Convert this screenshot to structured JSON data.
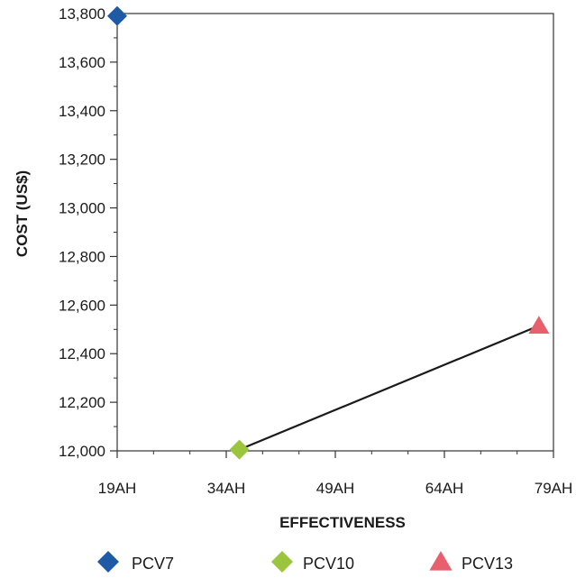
{
  "chart_data": {
    "type": "scatter",
    "title": "",
    "xlabel": "EFFECTIVENESS",
    "ylabel": "COST (US$)",
    "x_ticks": [
      {
        "value": 19,
        "label": "19AH"
      },
      {
        "value": 34,
        "label": "34AH"
      },
      {
        "value": 49,
        "label": "49AH"
      },
      {
        "value": 64,
        "label": "64AH"
      },
      {
        "value": 79,
        "label": "79AH"
      }
    ],
    "y_ticks": [
      {
        "value": 12000,
        "label": "12,000"
      },
      {
        "value": 12200,
        "label": "12,200"
      },
      {
        "value": 12400,
        "label": "12,400"
      },
      {
        "value": 12600,
        "label": "12,600"
      },
      {
        "value": 12800,
        "label": "12,800"
      },
      {
        "value": 13000,
        "label": "13,000"
      },
      {
        "value": 13200,
        "label": "13,200"
      },
      {
        "value": 13400,
        "label": "13,400"
      },
      {
        "value": 13600,
        "label": "13,600"
      },
      {
        "value": 13800,
        "label": "13,800"
      }
    ],
    "xlim": [
      19,
      79
    ],
    "ylim": [
      12000,
      13800
    ],
    "grid": false,
    "legend_position": "bottom",
    "series": [
      {
        "name": "PCV7",
        "x": 19,
        "y": 13790,
        "marker": "diamond",
        "color": "#1f5aa6"
      },
      {
        "name": "PCV10",
        "x": 35.8,
        "y": 12005,
        "marker": "diamond",
        "color": "#9bc53d"
      },
      {
        "name": "PCV13",
        "x": 77,
        "y": 12515,
        "marker": "triangle",
        "color": "#e8606e"
      }
    ],
    "frontier": {
      "from": "PCV10",
      "to": "PCV13",
      "color": "#1a1a1a"
    }
  }
}
